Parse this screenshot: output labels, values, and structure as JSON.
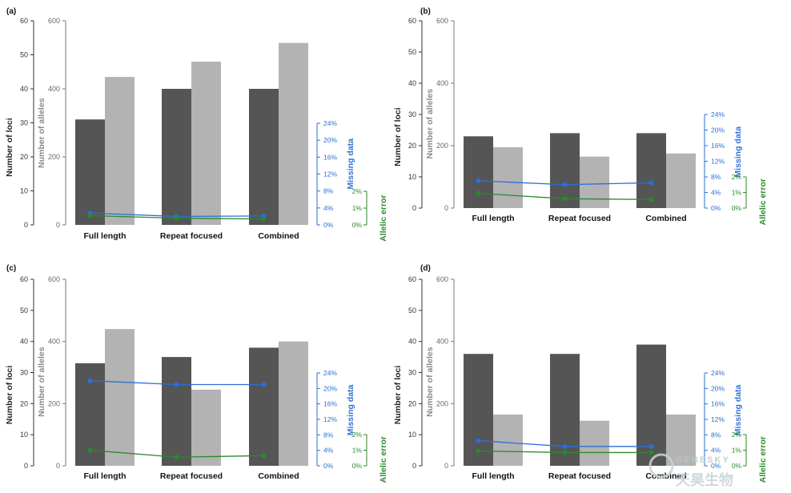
{
  "watermark": {
    "latin": "GENESKY",
    "chinese": "天昊生物"
  },
  "colors": {
    "loci": "#555555",
    "alleles": "#b3b3b3",
    "missing": "#2a6fd6",
    "allelic": "#2a8a2a"
  },
  "chart_data": [
    {
      "type": "bar",
      "panel": "(a)",
      "categories": [
        "Full length",
        "Repeat focused",
        "Combined"
      ],
      "series": [
        {
          "name": "Number of loci",
          "axis": "loci",
          "values": [
            31,
            40,
            40
          ]
        },
        {
          "name": "Number of alleles",
          "axis": "alleles",
          "values": [
            435,
            480,
            535
          ]
        },
        {
          "name": "Missing data",
          "axis": "missing",
          "values": [
            2.8,
            2.0,
            2.1
          ]
        },
        {
          "name": "Allelic error",
          "axis": "allelic",
          "values": [
            0.55,
            0.4,
            0.35
          ]
        }
      ],
      "axes": {
        "loci": {
          "label": "Number of loci",
          "ylim": [
            0,
            60
          ],
          "ticks": [
            "0",
            "10",
            "20",
            "30",
            "40",
            "50",
            "60"
          ]
        },
        "alleles": {
          "label": "Number of alleles",
          "ylim": [
            0,
            600
          ],
          "ticks": [
            "0",
            "200",
            "400",
            "600"
          ]
        },
        "missing": {
          "label": "Missing data",
          "ylim": [
            0,
            24
          ],
          "ticks": [
            "0%",
            "4%",
            "8%",
            "12%",
            "16%",
            "20%",
            "24%"
          ]
        },
        "allelic": {
          "label": "Allelic error",
          "ylim": [
            0,
            2
          ],
          "ticks": [
            "0%",
            "1%",
            "2%"
          ]
        }
      }
    },
    {
      "type": "bar",
      "panel": "(b)",
      "categories": [
        "Full length",
        "Repeat focused",
        "Combined"
      ],
      "series": [
        {
          "name": "Number of loci",
          "axis": "loci",
          "values": [
            23,
            24,
            24
          ]
        },
        {
          "name": "Number of alleles",
          "axis": "alleles",
          "values": [
            195,
            165,
            175
          ]
        },
        {
          "name": "Missing data",
          "axis": "missing",
          "values": [
            7,
            6,
            6.5
          ]
        },
        {
          "name": "Allelic error",
          "axis": "allelic",
          "values": [
            0.95,
            0.6,
            0.55
          ]
        }
      ],
      "axes": {
        "loci": {
          "label": "Number of loci",
          "ylim": [
            0,
            60
          ],
          "ticks": [
            "0",
            "10",
            "20",
            "30",
            "40",
            "50",
            "60"
          ]
        },
        "alleles": {
          "label": "Number of alleles",
          "ylim": [
            0,
            600
          ],
          "ticks": [
            "0",
            "200",
            "400",
            "600"
          ]
        },
        "missing": {
          "label": "Missing data",
          "ylim": [
            0,
            24
          ],
          "ticks": [
            "0%",
            "4%",
            "8%",
            "12%",
            "16%",
            "20%",
            "24%"
          ]
        },
        "allelic": {
          "label": "Allelic error",
          "ylim": [
            0,
            2
          ],
          "ticks": [
            "0%",
            "1%",
            "2%"
          ]
        }
      }
    },
    {
      "type": "bar",
      "panel": "(c)",
      "categories": [
        "Full length",
        "Repeat focused",
        "Combined"
      ],
      "series": [
        {
          "name": "Number of loci",
          "axis": "loci",
          "values": [
            33,
            35,
            38
          ]
        },
        {
          "name": "Number of alleles",
          "axis": "alleles",
          "values": [
            440,
            245,
            400
          ]
        },
        {
          "name": "Missing data",
          "axis": "missing",
          "values": [
            22,
            21,
            21
          ]
        },
        {
          "name": "Allelic error",
          "axis": "allelic",
          "values": [
            1.0,
            0.55,
            0.65
          ]
        }
      ],
      "axes": {
        "loci": {
          "label": "Number of loci",
          "ylim": [
            0,
            60
          ],
          "ticks": [
            "0",
            "10",
            "20",
            "30",
            "40",
            "50",
            "60"
          ]
        },
        "alleles": {
          "label": "Number of alleles",
          "ylim": [
            0,
            600
          ],
          "ticks": [
            "0",
            "200",
            "400",
            "600"
          ]
        },
        "missing": {
          "label": "Missing data",
          "ylim": [
            0,
            24
          ],
          "ticks": [
            "0%",
            "4%",
            "8%",
            "12%",
            "16%",
            "20%",
            "24%"
          ]
        },
        "allelic": {
          "label": "Allelic error",
          "ylim": [
            0,
            2
          ],
          "ticks": [
            "0%",
            "1%",
            "2%"
          ]
        }
      }
    },
    {
      "type": "bar",
      "panel": "(d)",
      "categories": [
        "Full length",
        "Repeat focused",
        "Combined"
      ],
      "series": [
        {
          "name": "Number of loci",
          "axis": "loci",
          "values": [
            36,
            36,
            39
          ]
        },
        {
          "name": "Number of alleles",
          "axis": "alleles",
          "values": [
            165,
            145,
            165
          ]
        },
        {
          "name": "Missing data",
          "axis": "missing",
          "values": [
            6.5,
            5,
            5
          ]
        },
        {
          "name": "Allelic error",
          "axis": "allelic",
          "values": [
            0.95,
            0.85,
            0.85
          ]
        }
      ],
      "axes": {
        "loci": {
          "label": "Number of loci",
          "ylim": [
            0,
            60
          ],
          "ticks": [
            "0",
            "10",
            "20",
            "30",
            "40",
            "50",
            "60"
          ]
        },
        "alleles": {
          "label": "Number of alleles",
          "ylim": [
            0,
            600
          ],
          "ticks": [
            "0",
            "200",
            "400",
            "600"
          ]
        },
        "missing": {
          "label": "Missing data",
          "ylim": [
            0,
            24
          ],
          "ticks": [
            "0%",
            "4%",
            "8%",
            "12%",
            "16%",
            "20%",
            "24%"
          ]
        },
        "allelic": {
          "label": "Allelic error",
          "ylim": [
            0,
            2
          ],
          "ticks": [
            "0%",
            "1%",
            "2%"
          ]
        }
      }
    }
  ]
}
